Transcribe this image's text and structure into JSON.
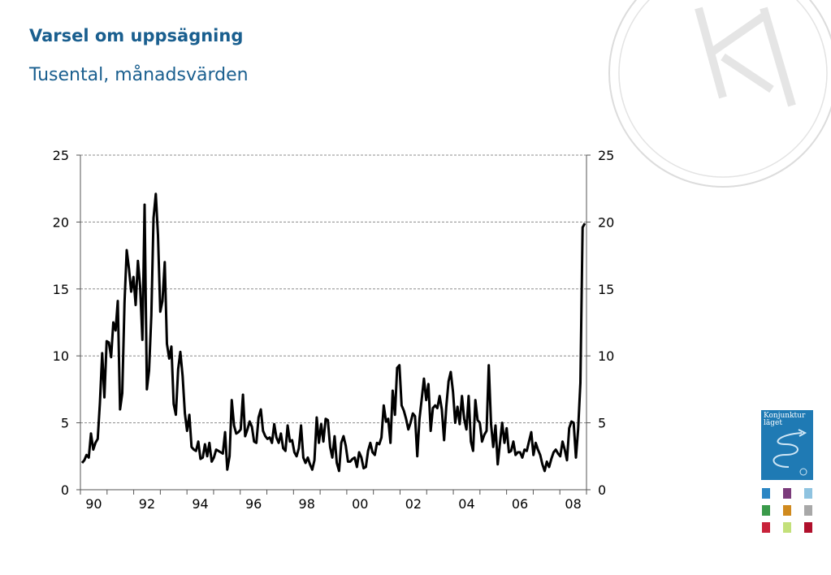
{
  "title": "Varsel om uppsägning",
  "subtitle": "Tusental, månadsvärden",
  "chart_data": {
    "type": "line",
    "title": "Varsel om uppsägning",
    "subtitle": "Tusental, månadsvärden",
    "ylim": [
      0,
      25
    ],
    "yticks": [
      "0",
      "5",
      "10",
      "15",
      "20",
      "25"
    ],
    "xticks": [
      "90",
      "92",
      "94",
      "96",
      "98",
      "00",
      "02",
      "04",
      "06",
      "08"
    ],
    "grid": true,
    "line_color": "#000000",
    "series": [
      {
        "x_start": "1990-01",
        "frequency": "monthly",
        "values": [
          2.0,
          2.2,
          2.6,
          2.4,
          4.2,
          3.0,
          3.5,
          3.8,
          6.5,
          10.2,
          6.9,
          11.1,
          11.0,
          9.9,
          12.5,
          11.9,
          14.1,
          6.0,
          7.2,
          14.0,
          17.9,
          16.5,
          14.8,
          15.9,
          13.8,
          17.1,
          15.2,
          11.2,
          21.3,
          7.5,
          8.9,
          13.0,
          20.3,
          22.1,
          19.0,
          13.3,
          14.1,
          17.0,
          10.9,
          9.8,
          10.7,
          6.4,
          5.6,
          9.0,
          10.3,
          8.5,
          5.7,
          4.4,
          5.6,
          3.2,
          3.0,
          2.9,
          3.6,
          2.3,
          2.4,
          3.4,
          2.5,
          3.5,
          2.1,
          2.4,
          3.0,
          2.9,
          2.8,
          2.7,
          4.3,
          1.5,
          2.5,
          6.7,
          4.8,
          4.2,
          4.3,
          4.5,
          7.1,
          4.0,
          4.5,
          5.1,
          4.7,
          3.6,
          3.5,
          5.4,
          6.0,
          4.4,
          4.0,
          3.8,
          3.9,
          3.5,
          4.9,
          3.9,
          3.5,
          4.2,
          3.1,
          2.9,
          4.8,
          3.6,
          3.7,
          2.8,
          2.5,
          3.1,
          4.8,
          2.4,
          2.0,
          2.4,
          1.9,
          1.5,
          2.2,
          5.4,
          3.5,
          4.9,
          3.6,
          5.3,
          5.2,
          3.2,
          2.4,
          4.0,
          2.0,
          1.4,
          3.5,
          4.0,
          3.3,
          2.1,
          2.1,
          2.3,
          2.4,
          1.7,
          2.8,
          2.4,
          1.6,
          1.7,
          2.9,
          3.5,
          2.8,
          2.6,
          3.5,
          3.4,
          3.9,
          6.3,
          5.1,
          5.3,
          3.5,
          7.4,
          5.6,
          9.1,
          9.3,
          6.3,
          5.9,
          5.3,
          4.5,
          5.0,
          5.7,
          5.5,
          2.5,
          5.3,
          6.8,
          8.3,
          6.7,
          7.9,
          4.4,
          6.1,
          6.3,
          6.1,
          7.0,
          6.0,
          3.7,
          6.2,
          8.1,
          8.8,
          7.3,
          5.0,
          6.2,
          4.9,
          7.0,
          5.3,
          4.5,
          7.0,
          3.6,
          2.9,
          6.7,
          5.2,
          5.0,
          3.6,
          4.1,
          4.4,
          9.3,
          4.9,
          3.2,
          4.8,
          1.9,
          3.5,
          5.0,
          3.5,
          4.6,
          2.8,
          2.9,
          3.6,
          2.6,
          2.8,
          2.8,
          2.4,
          3.0,
          2.9,
          3.6,
          4.3,
          2.6,
          3.5,
          3.0,
          2.6,
          1.9,
          1.4,
          2.1,
          1.7,
          2.3,
          2.8,
          3.0,
          2.7,
          2.5,
          3.6,
          3.0,
          2.2,
          4.6,
          5.1,
          5.0,
          2.4,
          4.5,
          8.0,
          19.6,
          19.9
        ]
      }
    ]
  },
  "cover": {
    "title_line1": "Konjunktur",
    "title_line2": "läget",
    "color": "#1f7ab4"
  },
  "watermark": {
    "color": "#dcdcdc"
  }
}
